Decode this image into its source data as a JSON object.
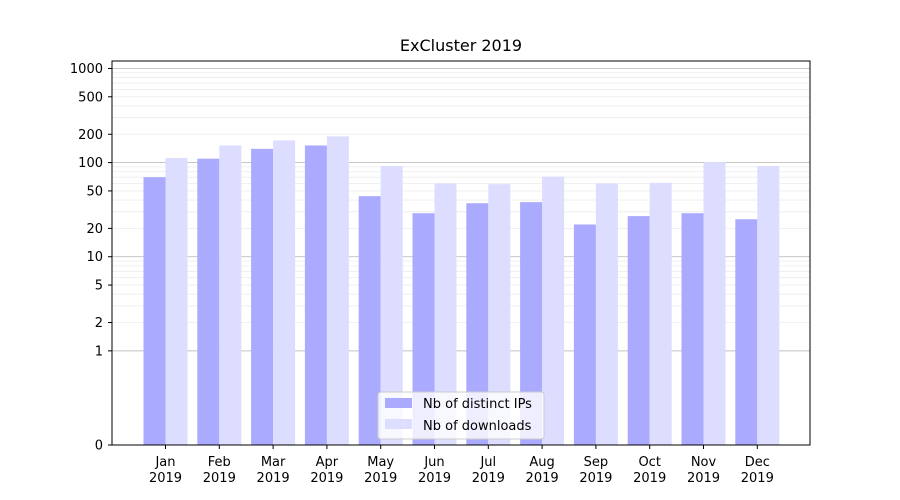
{
  "chart_data": {
    "type": "bar",
    "title": "ExCluster 2019",
    "xlabel": "",
    "ylabel": "",
    "yscale": "symlog",
    "ylim": [
      0,
      1200
    ],
    "categories": [
      {
        "month": "Jan",
        "year": "2019"
      },
      {
        "month": "Feb",
        "year": "2019"
      },
      {
        "month": "Mar",
        "year": "2019"
      },
      {
        "month": "Apr",
        "year": "2019"
      },
      {
        "month": "May",
        "year": "2019"
      },
      {
        "month": "Jun",
        "year": "2019"
      },
      {
        "month": "Jul",
        "year": "2019"
      },
      {
        "month": "Aug",
        "year": "2019"
      },
      {
        "month": "Sep",
        "year": "2019"
      },
      {
        "month": "Oct",
        "year": "2019"
      },
      {
        "month": "Nov",
        "year": "2019"
      },
      {
        "month": "Dec",
        "year": "2019"
      }
    ],
    "y_ticks": [
      0,
      1,
      2,
      5,
      10,
      20,
      50,
      100,
      200,
      500,
      1000
    ],
    "gridlines": "horizontal",
    "legend_position": "lower center",
    "series": [
      {
        "name": "Nb of distinct IPs",
        "color": "#aaaaff",
        "values": [
          70,
          110,
          140,
          152,
          44,
          29,
          37,
          38,
          22,
          27,
          29,
          25
        ]
      },
      {
        "name": "Nb of downloads",
        "color": "#ddddff",
        "values": [
          112,
          152,
          172,
          190,
          92,
          60,
          59,
          71,
          60,
          61,
          101,
          92
        ]
      }
    ]
  }
}
